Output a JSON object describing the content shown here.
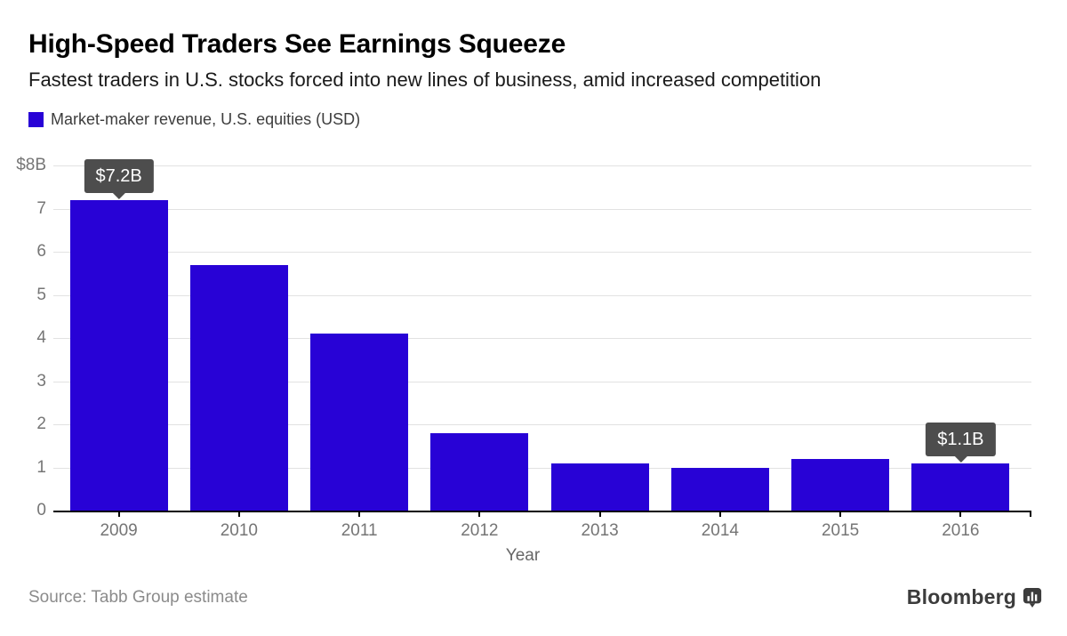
{
  "header": {
    "title": "High-Speed Traders See Earnings Squeeze",
    "subtitle": "Fastest traders in U.S. stocks forced into new lines of business, amid increased competition",
    "legend": {
      "label": "Market-maker revenue, U.S. equities (USD)",
      "swatch_color": "#2802d6"
    }
  },
  "chart_data": {
    "type": "bar",
    "categories": [
      "2009",
      "2010",
      "2011",
      "2012",
      "2013",
      "2014",
      "2015",
      "2016"
    ],
    "values": [
      7.2,
      5.7,
      4.1,
      1.8,
      1.1,
      1.0,
      1.2,
      1.1
    ],
    "title": "Market-maker revenue, U.S. equities (USD)",
    "xlabel": "Year",
    "ylabel": "",
    "ylim": [
      0,
      8
    ],
    "ytick_values": [
      0,
      1,
      2,
      3,
      4,
      5,
      6,
      7,
      8
    ],
    "ytick_labels": [
      "0",
      "1",
      "2",
      "3",
      "4",
      "5",
      "6",
      "7",
      "$8B"
    ],
    "grid": true,
    "legend_position": "top-left",
    "annotations": [
      {
        "category": "2009",
        "text": "$7.2B"
      },
      {
        "category": "2016",
        "text": "$1.1B"
      }
    ],
    "colors": {
      "bar": "#2802d6",
      "tooltip_bg": "#4d4d4d",
      "tooltip_text": "#ffffff",
      "gridline": "#e2e2e2",
      "axis": "#000000",
      "tick_label": "#757575"
    }
  },
  "footer": {
    "source": "Source: Tabb Group estimate",
    "logo_text": "Bloomberg",
    "logo_icon": "bar-chart-speech-bubble-icon"
  }
}
